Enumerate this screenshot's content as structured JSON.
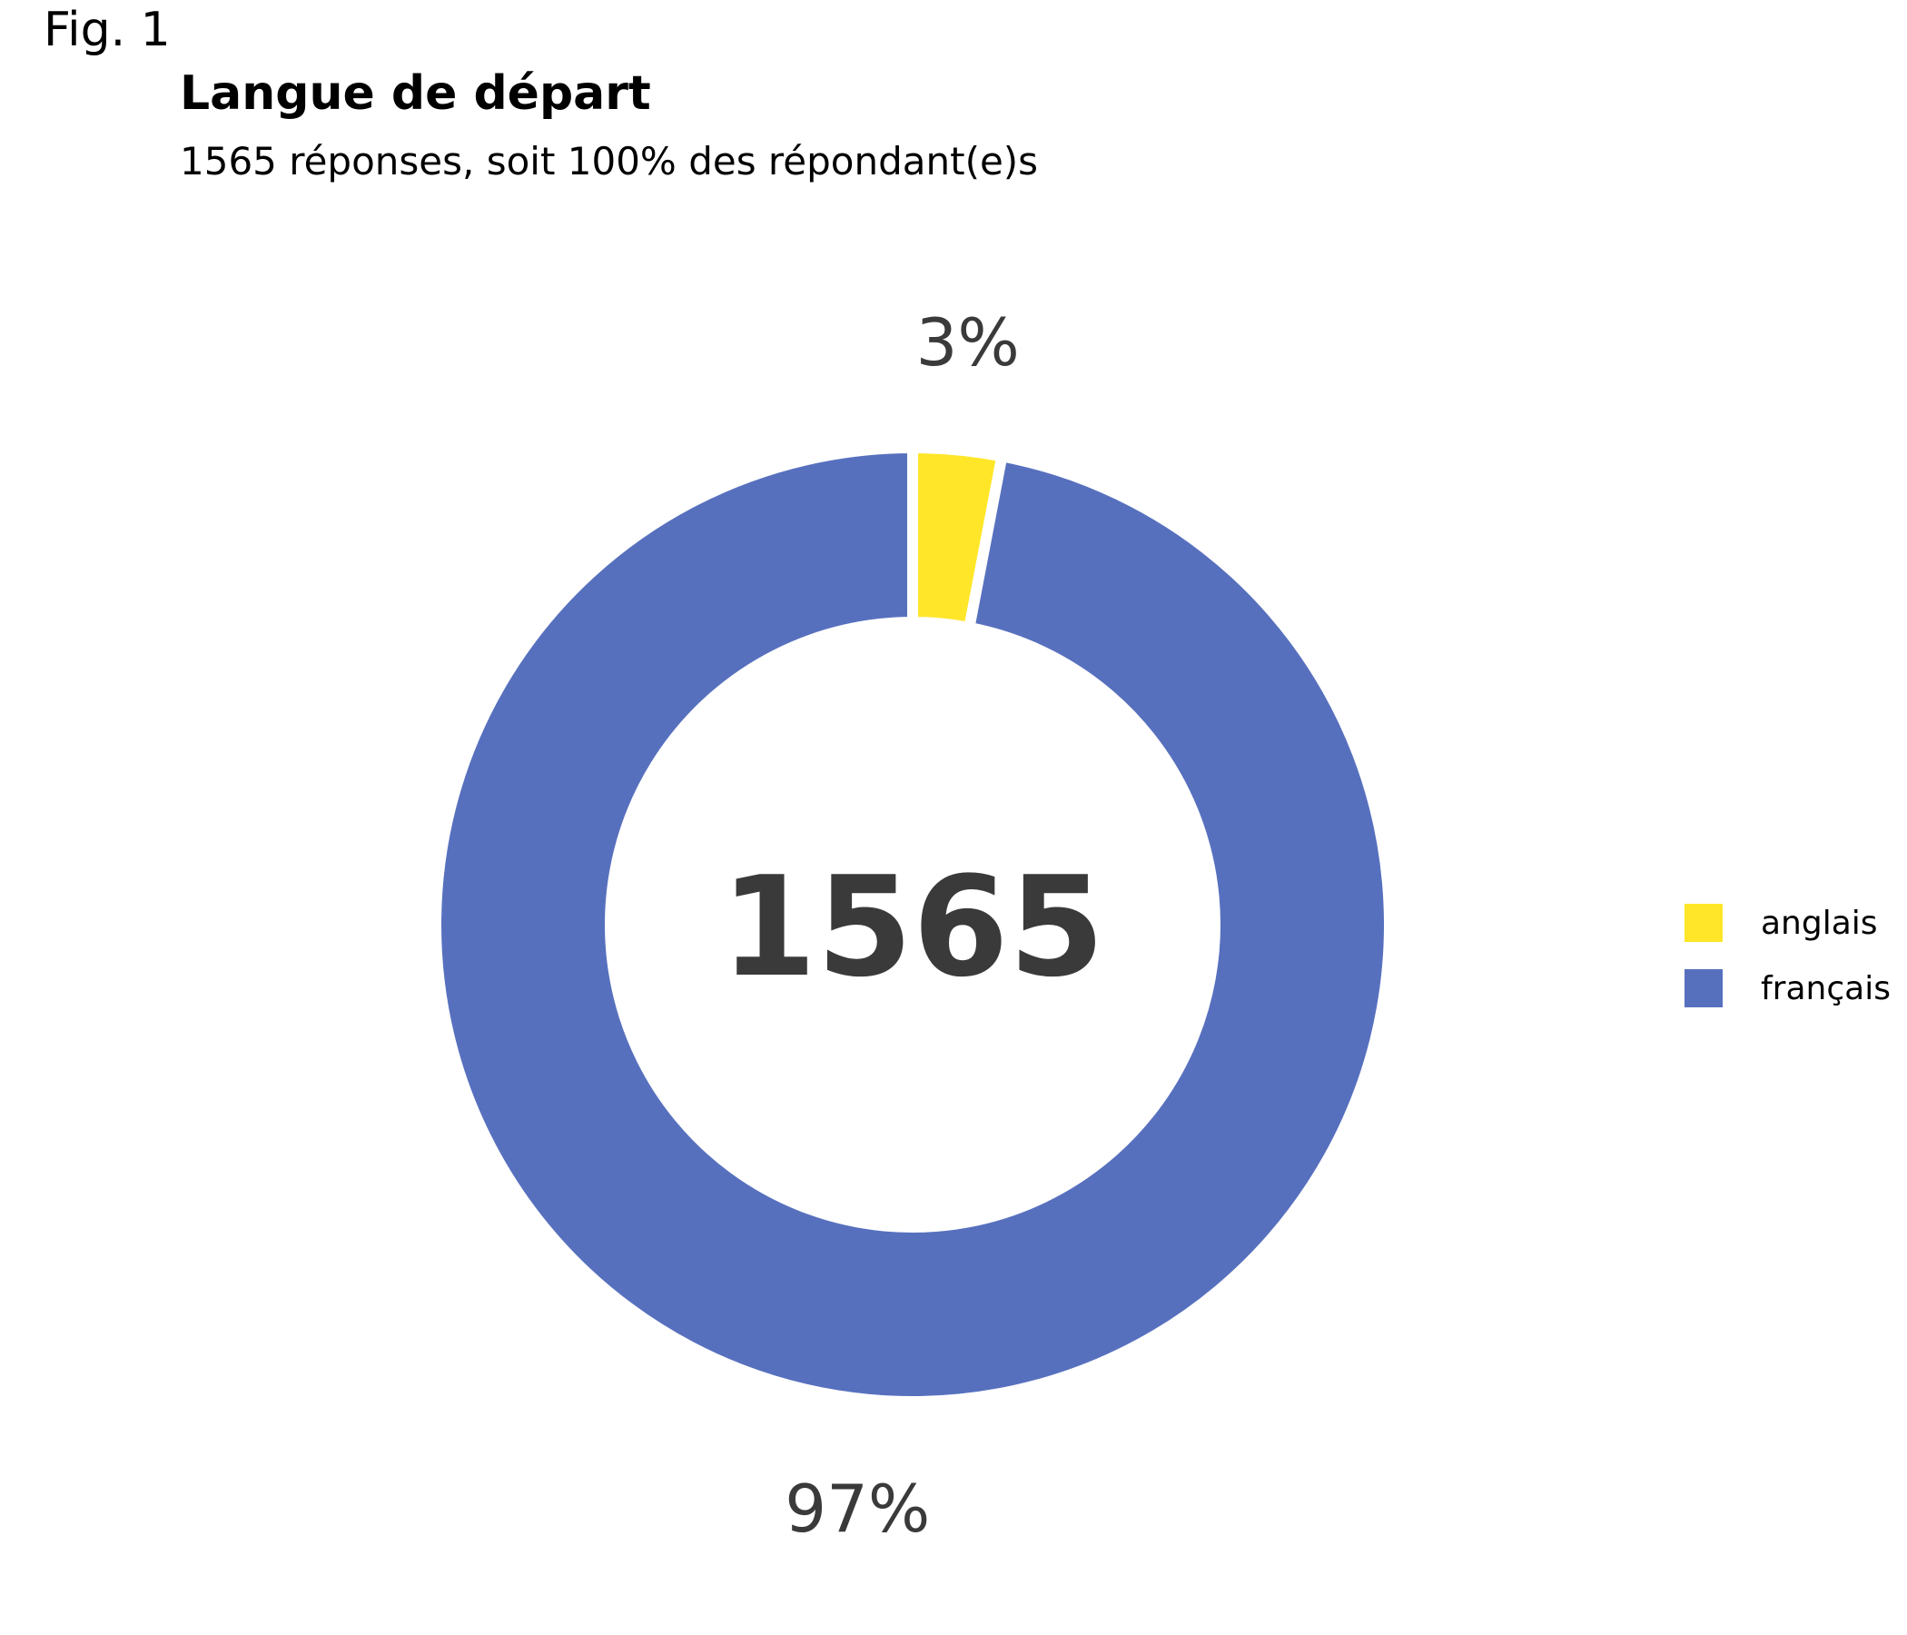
{
  "figure_label": "Fig. 1",
  "chart_data": {
    "type": "pie",
    "style": "donut",
    "title": "Langue de départ",
    "subtitle": "1565 réponses, soit 100% des répondant(e)s",
    "center_label": "1565",
    "categories": [
      "anglais",
      "français"
    ],
    "values": [
      3,
      97
    ],
    "value_labels": [
      "3%",
      "97%"
    ],
    "colors": [
      "#FFE629",
      "#5770BE"
    ],
    "legend_position": "right",
    "text_color": "#3A3A3A"
  }
}
